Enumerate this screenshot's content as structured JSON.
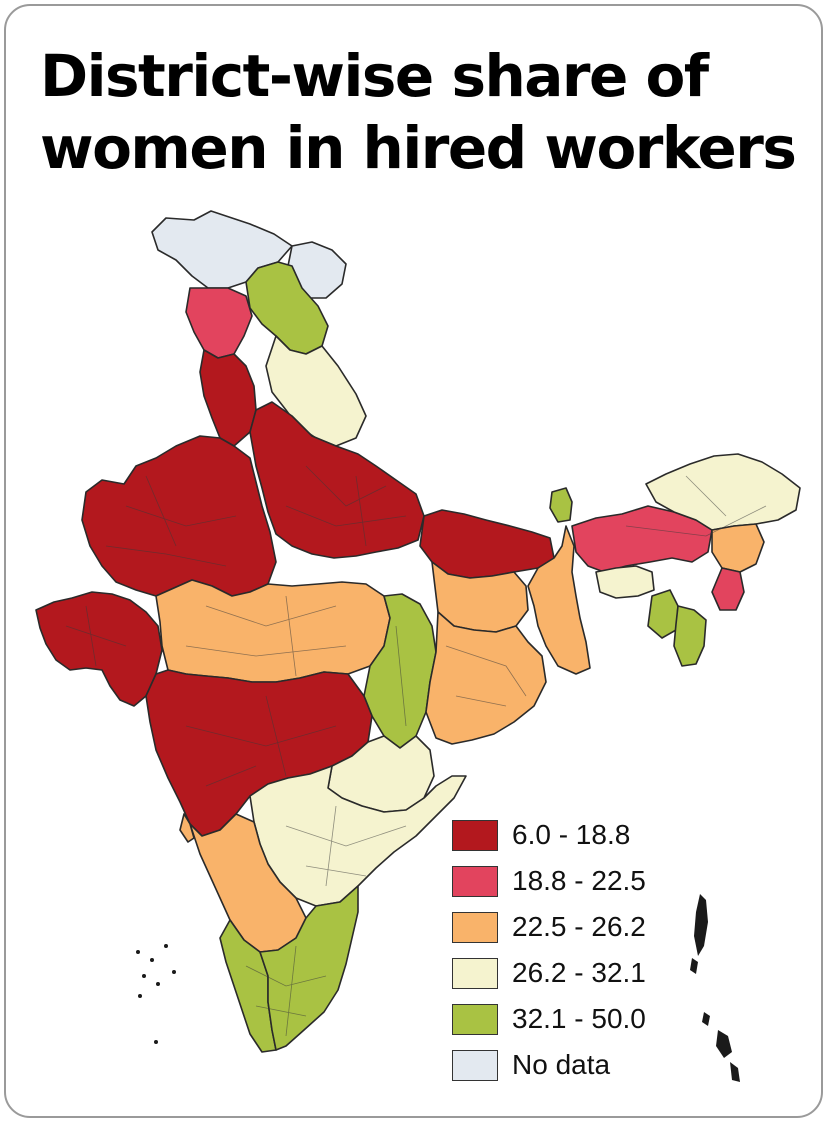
{
  "title_line1": "District-wise share of",
  "title_line2": "women in hired workers",
  "legend": [
    {
      "label": "6.0 - 18.8",
      "color": "#b3181e"
    },
    {
      "label": "18.8 - 22.5",
      "color": "#e2445e"
    },
    {
      "label": "22.5 - 26.2",
      "color": "#f9b36a"
    },
    {
      "label": "26.2 - 32.1",
      "color": "#f5f3cf"
    },
    {
      "label": "32.1 - 50.0",
      "color": "#a9c243"
    },
    {
      "label": "No data",
      "color": "#e3e9f0"
    }
  ],
  "regions": [
    {
      "name": "Jammu & Kashmir (north)",
      "class": "No data"
    },
    {
      "name": "Ladakh (east)",
      "class": "No data"
    },
    {
      "name": "Himachal Pradesh",
      "class": "32.1 - 50.0"
    },
    {
      "name": "Punjab",
      "class": "18.8 - 22.5"
    },
    {
      "name": "Uttarakhand",
      "class": "26.2 - 32.1"
    },
    {
      "name": "Haryana",
      "class": "6.0 - 18.8"
    },
    {
      "name": "Rajasthan",
      "class": "6.0 - 18.8"
    },
    {
      "name": "Uttar Pradesh",
      "class": "6.0 - 18.8"
    },
    {
      "name": "Bihar",
      "class": "6.0 - 18.8"
    },
    {
      "name": "Gujarat",
      "class": "6.0 - 18.8"
    },
    {
      "name": "Madhya Pradesh",
      "class": "22.5 - 26.2"
    },
    {
      "name": "Chhattisgarh",
      "class": "32.1 - 50.0"
    },
    {
      "name": "Jharkhand",
      "class": "22.5 - 26.2"
    },
    {
      "name": "West Bengal",
      "class": "22.5 - 26.2"
    },
    {
      "name": "Odisha",
      "class": "22.5 - 26.2"
    },
    {
      "name": "Maharashtra",
      "class": "6.0 - 18.8"
    },
    {
      "name": "Telangana",
      "class": "26.2 - 32.1"
    },
    {
      "name": "Andhra Pradesh",
      "class": "26.2 - 32.1"
    },
    {
      "name": "Karnataka",
      "class": "22.5 - 26.2"
    },
    {
      "name": "Goa",
      "class": "22.5 - 26.2"
    },
    {
      "name": "Kerala",
      "class": "32.1 - 50.0"
    },
    {
      "name": "Tamil Nadu",
      "class": "32.1 - 50.0"
    },
    {
      "name": "Sikkim",
      "class": "32.1 - 50.0"
    },
    {
      "name": "Assam",
      "class": "18.8 - 22.5"
    },
    {
      "name": "Arunachal Pradesh",
      "class": "26.2 - 32.1"
    },
    {
      "name": "Meghalaya",
      "class": "26.2 - 32.1"
    },
    {
      "name": "Nagaland",
      "class": "22.5 - 26.2"
    },
    {
      "name": "Manipur",
      "class": "18.8 - 22.5"
    },
    {
      "name": "Tripura",
      "class": "32.1 - 50.0"
    },
    {
      "name": "Mizoram",
      "class": "32.1 - 50.0"
    }
  ]
}
